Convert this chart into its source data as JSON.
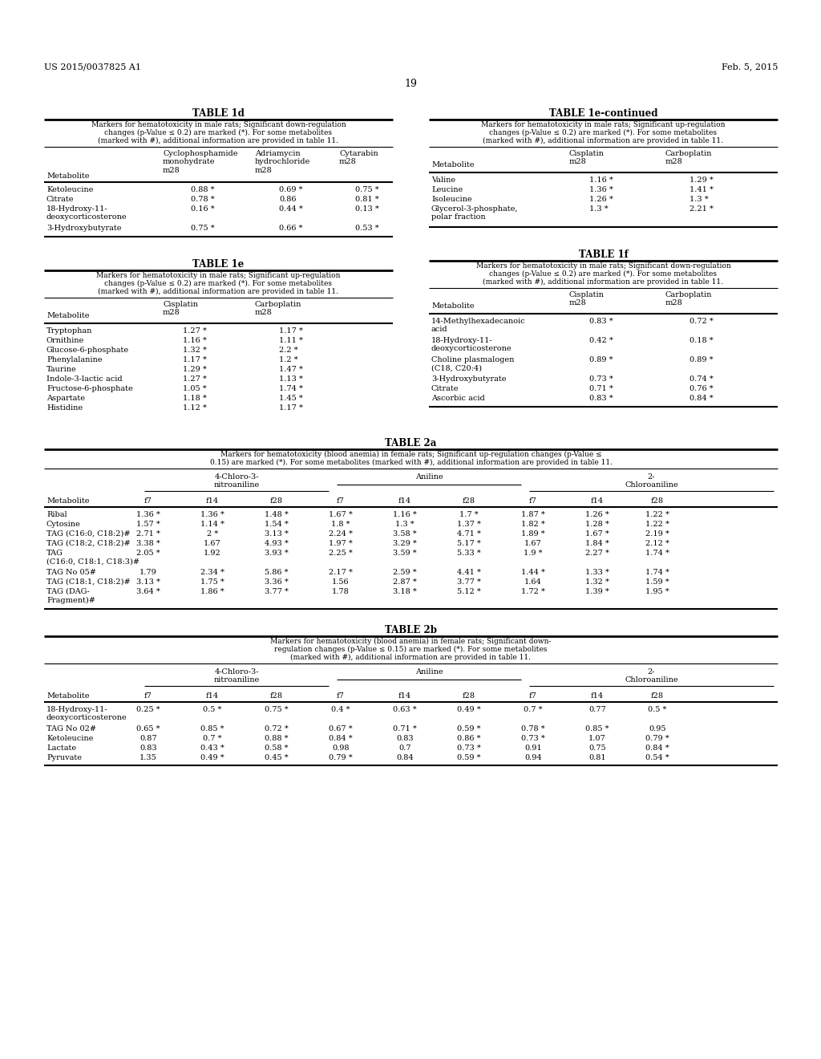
{
  "header_left": "US 2015/0037825 A1",
  "header_right": "Feb. 5, 2015",
  "page_number": "19",
  "table1d": {
    "title": "TABLE 1d",
    "caption_lines": [
      "Markers for hematotoxicity in male rats; Significant down-regulation",
      "changes (p-Value ≤ 0.2) are marked (*). For some metabolites",
      "(marked with #), additional information are provided in table 11."
    ],
    "col_headers": [
      "Cyclophosphamide\nmonohydrate\nm28",
      "Adriamycin\nhydrochloride\nm28",
      "Cytarabin\nm28"
    ],
    "rows": [
      [
        "Ketoleucine",
        "0.88 *",
        "0.69 *",
        "0.75 *"
      ],
      [
        "Citrate",
        "0.78 *",
        "0.86",
        "0.81 *"
      ],
      [
        "18-Hydroxy-11-\ndeoxycorticosterone",
        "0.16 *",
        "0.44 *",
        "0.13 *"
      ],
      [
        "3-Hydroxybutyrate",
        "0.75 *",
        "0.66 *",
        "0.53 *"
      ]
    ]
  },
  "table1e_cont": {
    "title": "TABLE 1e-continued",
    "caption_lines": [
      "Markers for hematotoxicity in male rats; Significant up-regulation",
      "changes (p-Value ≤ 0.2) are marked (*). For some metabolites",
      "(marked with #), additional information are provided in table 11."
    ],
    "col_headers": [
      "Cisplatin\nm28",
      "Carboplatin\nm28"
    ],
    "rows": [
      [
        "Valine",
        "1.16 *",
        "1.29 *"
      ],
      [
        "Leucine",
        "1.36 *",
        "1.41 *"
      ],
      [
        "Isoleucine",
        "1.26 *",
        "1.3 *"
      ],
      [
        "Glycerol-3-phosphate,\npolar fraction",
        "1.3 *",
        "2.21 *"
      ]
    ]
  },
  "table1e": {
    "title": "TABLE 1e",
    "caption_lines": [
      "Markers for hematotoxicity in male rats; Significant up-regulation",
      "changes (p-Value ≤ 0.2) are marked (*). For some metabolites",
      "(marked with #), additional information are provided in table 11."
    ],
    "col_headers": [
      "Cisplatin\nm28",
      "Carboplatin\nm28"
    ],
    "rows": [
      [
        "Tryptophan",
        "1.27 *",
        "1.17 *"
      ],
      [
        "Ornithine",
        "1.16 *",
        "1.11 *"
      ],
      [
        "Glucose-6-phosphate",
        "1.32 *",
        "2.2 *"
      ],
      [
        "Phenylalanine",
        "1.17 *",
        "1.2 *"
      ],
      [
        "Taurine",
        "1.29 *",
        "1.47 *"
      ],
      [
        "Indole-3-lactic acid",
        "1.27 *",
        "1.13 *"
      ],
      [
        "Fructose-6-phosphate",
        "1.05 *",
        "1.74 *"
      ],
      [
        "Aspartate",
        "1.18 *",
        "1.45 *"
      ],
      [
        "Histidine",
        "1.12 *",
        "1.17 *"
      ]
    ]
  },
  "table1f": {
    "title": "TABLE 1f",
    "caption_lines": [
      "Markers for hematotoxicity in male rats; Significant down-regulation",
      "changes (p-Value ≤ 0.2) are marked (*). For some metabolites",
      "(marked with #), additional information are provided in table 11."
    ],
    "col_headers": [
      "Cisplatin\nm28",
      "Carboplatin\nm28"
    ],
    "rows": [
      [
        "14-Methylhexadecanoic\nacid",
        "0.83 *",
        "0.72 *"
      ],
      [
        "18-Hydroxy-11-\ndeoxycorticosterone",
        "0.42 *",
        "0.18 *"
      ],
      [
        "Choline plasmalogen\n(C18, C20:4)",
        "0.89 *",
        "0.89 *"
      ],
      [
        "3-Hydroxybutyrate",
        "0.73 *",
        "0.74 *"
      ],
      [
        "Citrate",
        "0.71 *",
        "0.76 *"
      ],
      [
        "Ascorbic acid",
        "0.83 *",
        "0.84 *"
      ]
    ]
  },
  "table2a": {
    "title": "TABLE 2a",
    "caption_lines": [
      "Markers for hematotoxicity (blood anemia) in female rats; Significant up-regulation changes (p-Value ≤",
      "0.15) are marked (*). For some metabolites (marked with #), additional information are provided in table 11."
    ],
    "group_headers": [
      "4-Chloro-3-\nnitroaniline",
      "Aniline",
      "2-\nChloroaniline"
    ],
    "col_headers": [
      "Metabolite",
      "f7",
      "f14",
      "f28",
      "f7",
      "f14",
      "f28",
      "f7",
      "f14",
      "f28"
    ],
    "rows": [
      [
        "Ribal",
        "1.36 *",
        "1.36 *",
        "1.48 *",
        "1.67 *",
        "1.16 *",
        "1.7 *",
        "1.87 *",
        "1.26 *",
        "1.22 *"
      ],
      [
        "Cytosine",
        "1.57 *",
        "1.14 *",
        "1.54 *",
        "1.8 *",
        "1.3 *",
        "1.37 *",
        "1.82 *",
        "1.28 *",
        "1.22 *"
      ],
      [
        "TAG (C16:0, C18:2)#",
        "2.71 *",
        "2 *",
        "3.13 *",
        "2.24 *",
        "3.58 *",
        "4.71 *",
        "1.89 *",
        "1.67 *",
        "2.19 *"
      ],
      [
        "TAG (C18:2, C18:2)#",
        "3.38 *",
        "1.67",
        "4.93 *",
        "1.97 *",
        "3.29 *",
        "5.17 *",
        "1.67",
        "1.84 *",
        "2.12 *"
      ],
      [
        "TAG\n(C16:0, C18:1, C18:3)#",
        "2.05 *",
        "1.92",
        "3.93 *",
        "2.25 *",
        "3.59 *",
        "5.33 *",
        "1.9 *",
        "2.27 *",
        "1.74 *"
      ],
      [
        "TAG No 05#",
        "1.79",
        "2.34 *",
        "5.86 *",
        "2.17 *",
        "2.59 *",
        "4.41 *",
        "1.44 *",
        "1.33 *",
        "1.74 *"
      ],
      [
        "TAG (C18:1, C18:2)#",
        "3.13 *",
        "1.75 *",
        "3.36 *",
        "1.56",
        "2.87 *",
        "3.77 *",
        "1.64",
        "1.32 *",
        "1.59 *"
      ],
      [
        "TAG (DAG-\nFragment)#",
        "3.64 *",
        "1.86 *",
        "3.77 *",
        "1.78",
        "3.18 *",
        "5.12 *",
        "1.72 *",
        "1.39 *",
        "1.95 *"
      ]
    ]
  },
  "table2b": {
    "title": "TABLE 2b",
    "caption_lines": [
      "Markers for hematotoxicity (blood anemia) in female rats; Significant down-",
      "regulation changes (p-Value ≤ 0.15) are marked (*). For some metabolites",
      "(marked with #), additional information are provided in table 11."
    ],
    "group_headers": [
      "4-Chloro-3-\nnitroaniline",
      "Aniline",
      "2-\nChloroaniline"
    ],
    "col_headers": [
      "Metabolite",
      "f7",
      "f14",
      "f28",
      "f7",
      "f14",
      "f28",
      "f7",
      "f14",
      "f28"
    ],
    "rows": [
      [
        "18-Hydroxy-11-\ndeoxycorticosterone",
        "0.25 *",
        "0.5 *",
        "0.75 *",
        "0.4 *",
        "0.63 *",
        "0.49 *",
        "0.7 *",
        "0.77",
        "0.5 *"
      ],
      [
        "TAG No 02#",
        "0.65 *",
        "0.85 *",
        "0.72 *",
        "0.67 *",
        "0.71 *",
        "0.59 *",
        "0.78 *",
        "0.85 *",
        "0.95"
      ],
      [
        "Ketoleucine",
        "0.87",
        "0.7 *",
        "0.88 *",
        "0.84 *",
        "0.83",
        "0.86 *",
        "0.73 *",
        "1.07",
        "0.79 *"
      ],
      [
        "Lactate",
        "0.83",
        "0.43 *",
        "0.58 *",
        "0.98",
        "0.7",
        "0.73 *",
        "0.91",
        "0.75",
        "0.84 *"
      ],
      [
        "Pyruvate",
        "1.35",
        "0.49 *",
        "0.45 *",
        "0.79 *",
        "0.84",
        "0.59 *",
        "0.94",
        "0.81",
        "0.54 *"
      ]
    ]
  }
}
